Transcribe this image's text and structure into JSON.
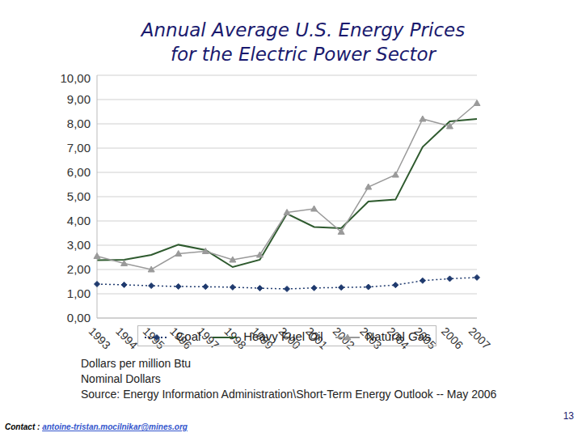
{
  "chart_data": {
    "type": "line",
    "title": "Annual Average U.S. Energy Prices\nfor the Electric Power Sector",
    "categories": [
      "1993",
      "1994",
      "1995",
      "1996",
      "1997",
      "1998",
      "1999",
      "2000",
      "2001",
      "2002",
      "2003",
      "2004",
      "2005",
      "2006",
      "2007"
    ],
    "series": [
      {
        "name": "Coal",
        "color": "#1f3a6e",
        "marker": "diamond",
        "line_style": "dotted",
        "values": [
          1.4,
          1.37,
          1.33,
          1.3,
          1.29,
          1.27,
          1.23,
          1.2,
          1.24,
          1.26,
          1.28,
          1.36,
          1.54,
          1.62,
          1.67
        ]
      },
      {
        "name": "Heavy Fuel Oil",
        "color": "#2e5a2e",
        "marker": "none",
        "line_style": "solid",
        "values": [
          2.38,
          2.4,
          2.6,
          3.02,
          2.8,
          2.1,
          2.4,
          4.3,
          3.75,
          3.7,
          4.8,
          4.88,
          7.05,
          8.1,
          8.2
        ]
      },
      {
        "name": "Natural Gas",
        "color": "#9a9a9a",
        "marker": "triangle",
        "line_style": "solid",
        "values": [
          2.55,
          2.25,
          2.0,
          2.65,
          2.75,
          2.4,
          2.6,
          4.35,
          4.5,
          3.55,
          5.4,
          5.9,
          8.2,
          7.9,
          8.85
        ]
      }
    ],
    "ylim": [
      0,
      10
    ],
    "yticks": [
      {
        "value": 0,
        "label": "0,00"
      },
      {
        "value": 1,
        "label": "1,00"
      },
      {
        "value": 2,
        "label": "2,00"
      },
      {
        "value": 3,
        "label": "3,00"
      },
      {
        "value": 4,
        "label": "4,00"
      },
      {
        "value": 5,
        "label": "5,00"
      },
      {
        "value": 6,
        "label": "6,00"
      },
      {
        "value": 7,
        "label": "7,00"
      },
      {
        "value": 8,
        "label": "8,00"
      },
      {
        "value": 9,
        "label": "9,00"
      },
      {
        "value": 10,
        "label": "10,00"
      }
    ],
    "grid": true,
    "legend": "bottom",
    "annotations": [
      "Dollars per million Btu",
      "Nominal Dollars",
      "Source: Energy Information Administration\\Short-Term Energy Outlook -- May 2006"
    ]
  },
  "page": {
    "number": "13",
    "contact_label": "Contact :",
    "contact": "antoine-tristan.mocilnikar@mines.org"
  }
}
